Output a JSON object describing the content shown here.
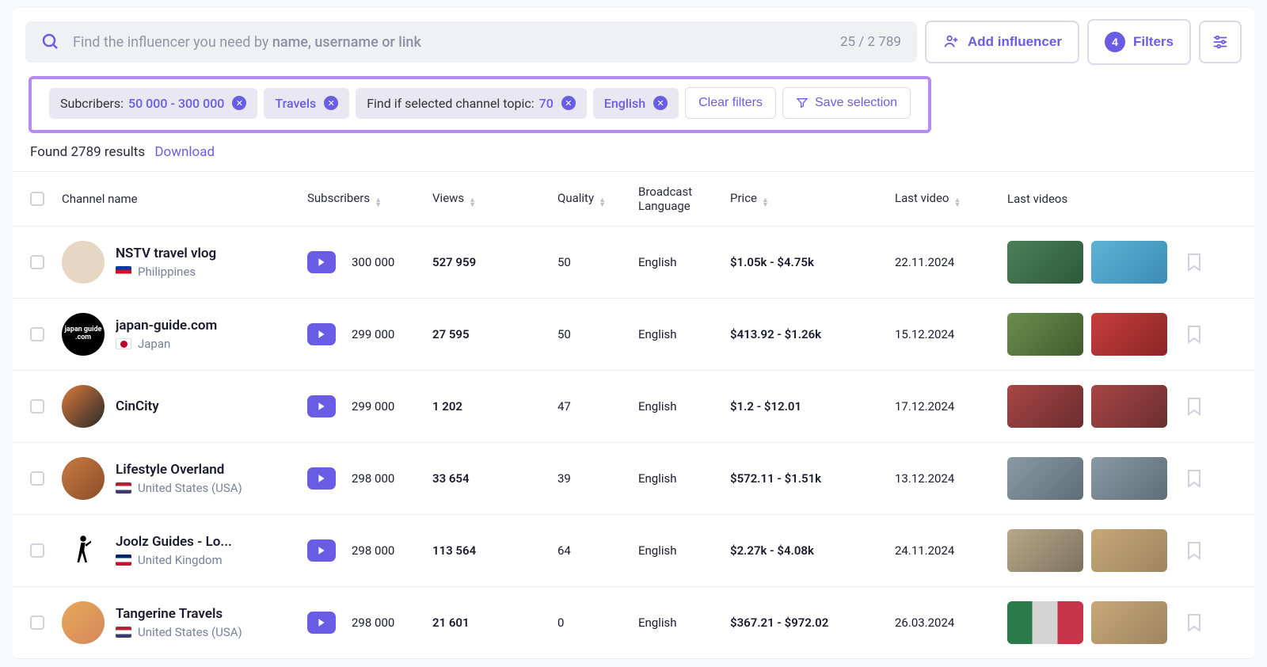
{
  "search": {
    "placeholder_pre": "Find the influencer you need by ",
    "placeholder_bold": "name, username or link",
    "count": "25 / 2 789"
  },
  "header_buttons": {
    "add": "Add influencer",
    "filters": "Filters",
    "filters_badge": "4"
  },
  "filter_chips": [
    {
      "label": "Subcribers:",
      "value": "50 000 - 300 000"
    },
    {
      "label": "",
      "value": "Travels"
    },
    {
      "label": "Find if selected channel topic:",
      "value": "70"
    },
    {
      "label": "",
      "value": "English"
    }
  ],
  "clear_filters": "Clear filters",
  "save_selection": "Save selection",
  "results_found": "Found 2789 results",
  "download": "Download",
  "columns": {
    "channel": "Channel name",
    "subscribers": "Subscribers",
    "views": "Views",
    "quality": "Quality",
    "lang": "Broadcast Language",
    "price": "Price",
    "lastvideo": "Last video",
    "lastvideos": "Last videos"
  },
  "rows": [
    {
      "name": "NSTV travel vlog",
      "country": "Philippines",
      "flag_colors": [
        "#0038a8",
        "#ce1126",
        "#ffffff"
      ],
      "avatar_bg": "#e6d7c4",
      "subs": "300 000",
      "views": "527 959",
      "quality": "50",
      "lang": "English",
      "price": "$1.05k - $4.75k",
      "lastvideo": "22.11.2024",
      "thumb1": "linear-gradient(135deg,#4a8058,#2d5a3a)",
      "thumb2": "linear-gradient(135deg,#5eb3d4,#3a8cb5)"
    },
    {
      "name": "japan-guide.com",
      "country": "Japan",
      "flag_colors": [
        "#ffffff",
        "#bc002d"
      ],
      "avatar_bg": "#000000",
      "avatar_text": "japan guide .com",
      "subs": "299 000",
      "views": "27 595",
      "quality": "50",
      "lang": "English",
      "price": "$413.92 - $1.26k",
      "lastvideo": "15.12.2024",
      "thumb1": "linear-gradient(135deg,#6b8e4e,#3e5c2d)",
      "thumb2": "linear-gradient(135deg,#c83e3e,#8a2525)"
    },
    {
      "name": "CinCity",
      "country": "",
      "flag_colors": [],
      "avatar_bg": "linear-gradient(135deg,#d97a3a,#2a2a2a)",
      "subs": "299 000",
      "views": "1 202",
      "quality": "47",
      "lang": "English",
      "price": "$1.2 - $12.01",
      "lastvideo": "17.12.2024",
      "thumb1": "linear-gradient(135deg,#a84545,#6b2e2e)",
      "thumb2": "linear-gradient(135deg,#a84545,#6b2e2e)"
    },
    {
      "name": "Lifestyle Overland",
      "country": "United States (USA)",
      "flag_colors": [
        "#b22234",
        "#ffffff",
        "#3c3b6e"
      ],
      "avatar_bg": "linear-gradient(135deg,#c97a42,#8a4e28)",
      "subs": "298 000",
      "views": "33 654",
      "quality": "39",
      "lang": "English",
      "price": "$572.11 - $1.51k",
      "lastvideo": "13.12.2024",
      "thumb1": "linear-gradient(135deg,#8a9aa5,#5e6e78)",
      "thumb2": "linear-gradient(135deg,#8a9aa5,#5e6e78)"
    },
    {
      "name": "Joolz Guides - Lo...",
      "country": "United Kingdom",
      "flag_colors": [
        "#012169",
        "#ffffff",
        "#c8102e"
      ],
      "avatar_bg": "#ffffff",
      "avatar_icon": "walker",
      "subs": "298 000",
      "views": "113 564",
      "quality": "64",
      "lang": "English",
      "price": "$2.27k - $4.08k",
      "lastvideo": "24.11.2024",
      "thumb1": "linear-gradient(135deg,#b8a88a,#7e725e)",
      "thumb2": "linear-gradient(135deg,#c7a878,#9e8560)"
    },
    {
      "name": "Tangerine Travels",
      "country": "United States (USA)",
      "flag_colors": [
        "#b22234",
        "#ffffff",
        "#3c3b6e"
      ],
      "avatar_bg": "linear-gradient(135deg,#e8a85a,#d4875a)",
      "subs": "298 000",
      "views": "21 601",
      "quality": "0",
      "lang": "English",
      "price": "$367.21 - $972.02",
      "lastvideo": "26.03.2024",
      "thumb1": "linear-gradient(90deg,#2a7a4a 0%,#2a7a4a 33%,#d4d4d4 33%,#d4d4d4 66%,#c8354a 66%)",
      "thumb2": "linear-gradient(135deg,#c7a878,#9e8560)"
    }
  ]
}
